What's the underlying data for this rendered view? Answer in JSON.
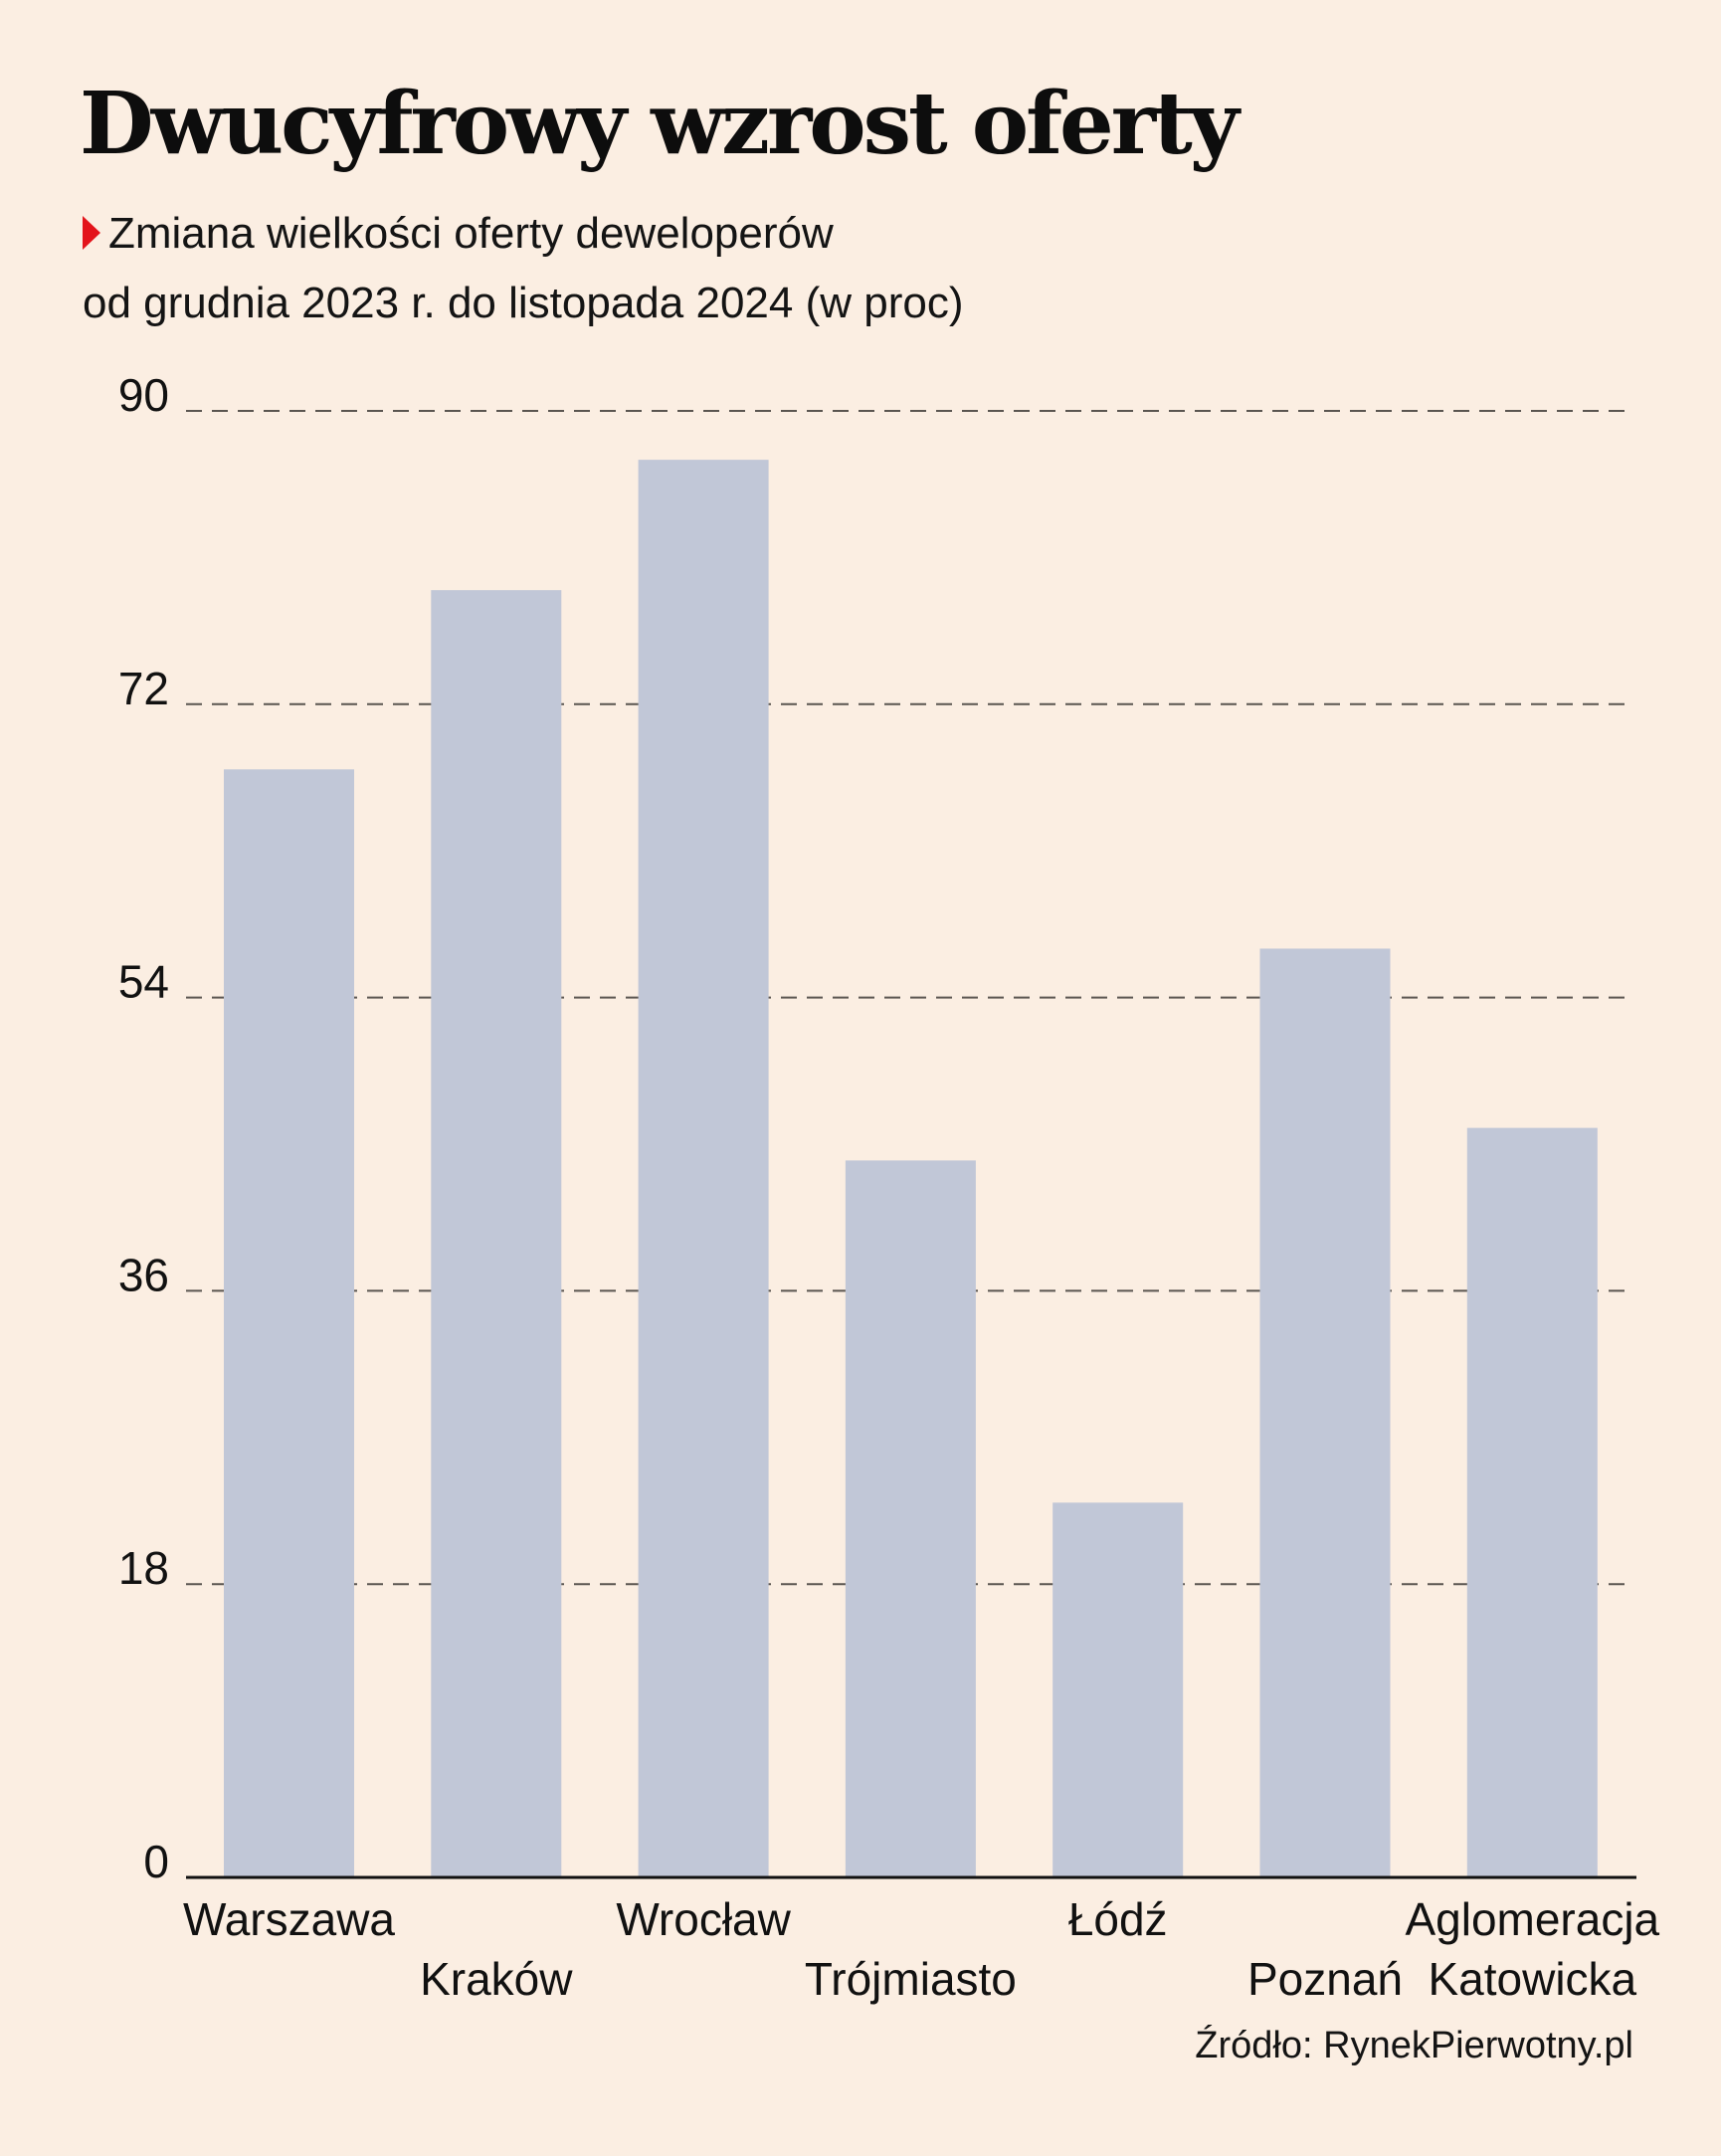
{
  "header": {
    "title": "Dwucyfrowy wzrost oferty",
    "subtitle_line1": "Zmiana wielkości oferty deweloperów",
    "subtitle_line2": "od grudnia 2023 r. do listopada 2024 (w proc)",
    "marker_icon": "triangle-right-icon"
  },
  "source": "Źródło: RynekPierwotny.pl",
  "colors": {
    "background": "#FBEEE2",
    "bar": "#C1C7D7",
    "accent": "#E3141B",
    "grid": "#5a5550",
    "axis": "#111111"
  },
  "chart_data": {
    "type": "bar",
    "title": "Dwucyfrowy wzrost oferty",
    "subtitle": "Zmiana wielkości oferty deweloperów od grudnia 2023 r. do listopada 2024 (w proc)",
    "xlabel": "",
    "ylabel": "",
    "categories": [
      "Warszawa",
      "Kraków",
      "Wrocław",
      "Trójmiasto",
      "Łódź",
      "Poznań",
      "Aglomeracja Katowicka"
    ],
    "category_label_lines": [
      [
        "Warszawa"
      ],
      [
        "Kraków"
      ],
      [
        "Wrocław"
      ],
      [
        "Trójmiasto"
      ],
      [
        "Łódź"
      ],
      [
        "Poznań"
      ],
      [
        "Aglomeracja",
        "Katowicka"
      ]
    ],
    "values": [
      68,
      79,
      87,
      44,
      23,
      57,
      46
    ],
    "ylim": [
      0,
      90
    ],
    "yticks": [
      0,
      18,
      36,
      54,
      72,
      90
    ],
    "grid": true,
    "grid_style": "dashed",
    "legend": "none",
    "source": "Źródło: RynekPierwotny.pl"
  }
}
